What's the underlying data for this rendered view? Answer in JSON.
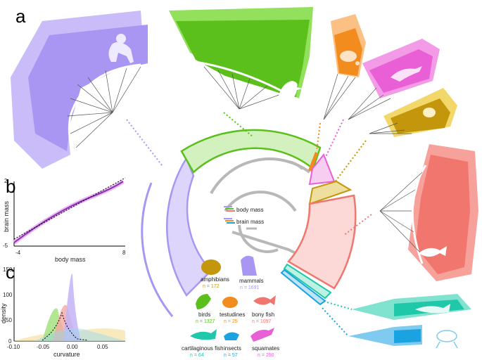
{
  "panels": {
    "a": "a",
    "b": "b",
    "c": "c"
  },
  "colors": {
    "mammals": "#a996f3",
    "birds": "#5bbf1c",
    "testudines": "#f28c1e",
    "squamates": "#e85fd6",
    "amphibians": "#c4960c",
    "bony_fish": "#f0766e",
    "cartilaginous_fish": "#1ec8a8",
    "insects": "#1aa3e0",
    "tree_gray": "#b8b8b8",
    "branch_dark": "#555555"
  },
  "legend": {
    "body_mass": "body mass",
    "brain_mass": "brain mass"
  },
  "panel_b": {
    "xlabel": "body mass",
    "ylabel": "brain mass",
    "xticks": [
      "-4",
      "8"
    ],
    "yticks": [
      "2",
      "-5"
    ]
  },
  "panel_c": {
    "xlabel": "curvature",
    "ylabel": "density",
    "xticks": [
      "-0.10",
      "-0.05",
      "0.00",
      "0.05"
    ],
    "yticks": [
      "150",
      "100",
      "50",
      "0"
    ]
  },
  "groups": [
    {
      "key": "amphibians",
      "name": "amphibians",
      "n": "n = 172"
    },
    {
      "key": "mammals",
      "name": "mammals",
      "n": "n = 1691"
    },
    {
      "key": "birds",
      "name": "birds",
      "n": "n = 1327"
    },
    {
      "key": "testudines",
      "name": "testudines",
      "n": "n = 25"
    },
    {
      "key": "bony_fish",
      "name": "bony fish",
      "n": "n = 1097"
    },
    {
      "key": "cartilaginous_fish",
      "name": "cartilaginous fish",
      "n": "n = 64"
    },
    {
      "key": "insects",
      "name": "insects",
      "n": "n = 57"
    },
    {
      "key": "squamates",
      "name": "squamates",
      "n": "n = 250"
    }
  ]
}
